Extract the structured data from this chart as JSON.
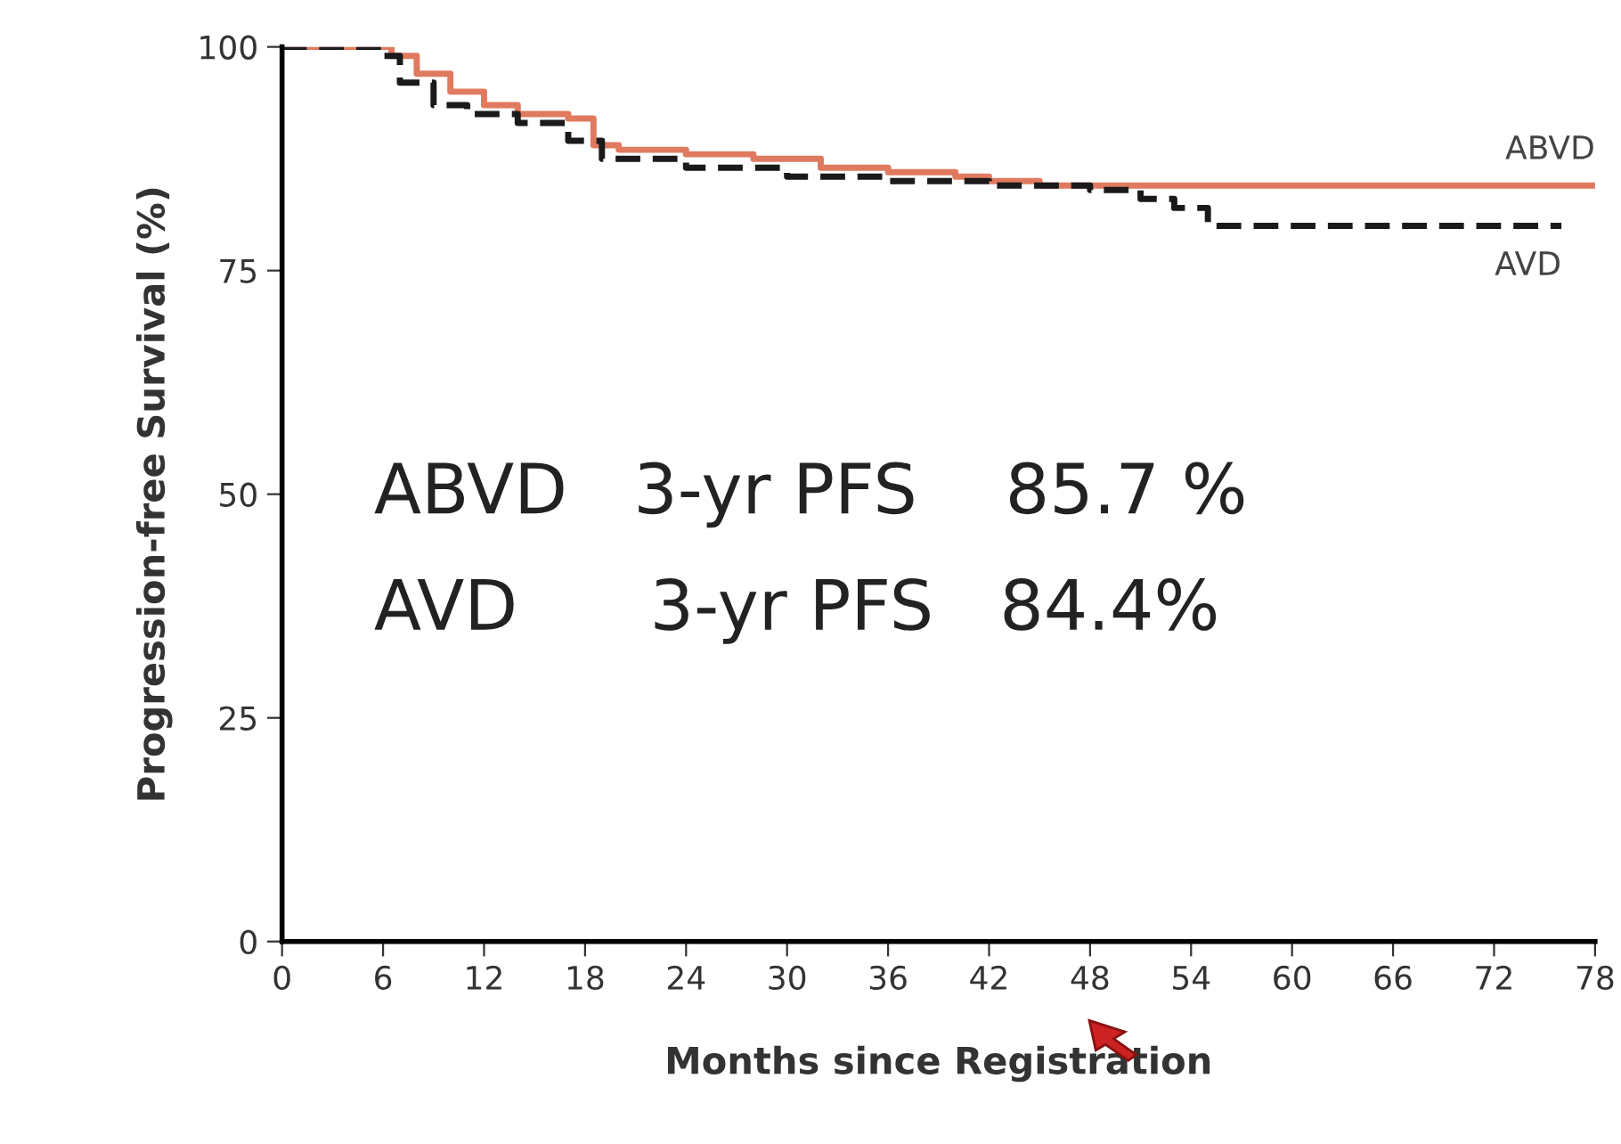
{
  "chart_data": {
    "type": "step",
    "xlabel": "Months since Registration",
    "ylabel": "Progression-free Survival (%)",
    "xlim": [
      0,
      78
    ],
    "ylim": [
      0,
      100
    ],
    "xticks": [
      0,
      6,
      12,
      18,
      24,
      30,
      36,
      42,
      48,
      54,
      60,
      66,
      72,
      78
    ],
    "yticks": [
      0,
      25,
      50,
      75,
      100
    ],
    "grid": false,
    "legend": false,
    "series": [
      {
        "name": "ABVD",
        "color": "#e07a5f",
        "line_style": "solid",
        "x": [
          0,
          5.5,
          6.5,
          8,
          10,
          12,
          14,
          17,
          18.5,
          20,
          24,
          28,
          32,
          36,
          40,
          42,
          45,
          78
        ],
        "values": [
          100,
          100,
          99,
          97,
          95,
          93.5,
          92.5,
          92,
          89,
          88.5,
          88,
          87.5,
          86.5,
          86,
          85.5,
          85,
          84.5,
          84.5
        ]
      },
      {
        "name": "AVD",
        "color": "#1a1a1a",
        "line_style": "dashed",
        "x": [
          0,
          5,
          6,
          7,
          9,
          11,
          14,
          17,
          19,
          24,
          30,
          36,
          42,
          48,
          51,
          53,
          55,
          76
        ],
        "values": [
          100,
          100,
          99,
          96,
          93.5,
          92.5,
          91.5,
          89.5,
          87.5,
          86.5,
          85.5,
          85,
          84.5,
          84,
          83,
          82,
          80,
          80
        ]
      }
    ],
    "annotations": [
      "ABVD   3-yr PFS    85.7 %",
      "AVD      3-yr PFS   84.4%"
    ]
  }
}
